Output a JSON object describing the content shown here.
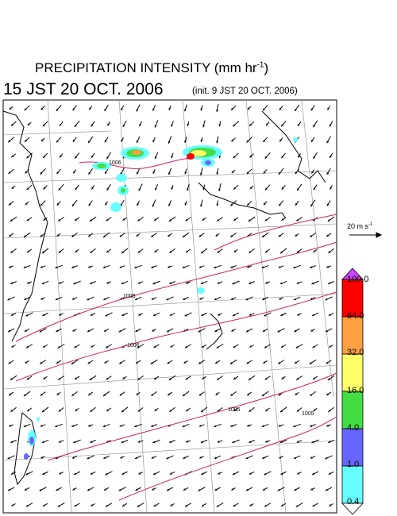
{
  "title": {
    "main": "PRECIPITATION INTENSITY (mm hr",
    "unit_exp": "-1",
    "close": ")",
    "valid_time": "15 JST 20 OCT. 2006",
    "init_time": "(init. 9 JST 20 OCT. 2006)"
  },
  "wind_scale": {
    "label": "20 m s",
    "exp": "-1"
  },
  "colorbar": {
    "labels": [
      "100.0",
      "64.0",
      "32.0",
      "16.0",
      "4.0",
      "1.0",
      "0.4"
    ],
    "colors": [
      "#ff0000",
      "#ffa040",
      "#ffff66",
      "#44dd44",
      "#6666ff",
      "#66ffff"
    ],
    "top_arrow_color": "#cc44ff",
    "bottom_arrow_color": "#ffffff"
  },
  "isobars": {
    "color": "#cc2266",
    "labels": [
      "1008",
      "1006",
      "1006",
      "1005",
      "1005"
    ]
  },
  "map": {
    "land_color": "#000000",
    "grid_color": "#888888",
    "frame_color": "#000000"
  }
}
